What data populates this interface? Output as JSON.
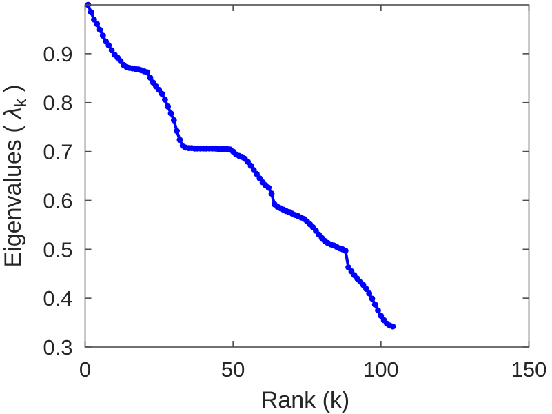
{
  "figure": {
    "background": "#ffffff"
  },
  "chart_data": {
    "type": "scatter",
    "title": "",
    "xlabel": "Rank (k)",
    "ylabel": "Eigenvalues ( λk )",
    "ylabel_parts": {
      "prefix": "Eigenvalues ( ",
      "symbol": "λ",
      "subscript": "k",
      "suffix": " )"
    },
    "xlim": [
      0,
      150
    ],
    "ylim": [
      0.3,
      1.0
    ],
    "xticks": {
      "values": [
        0,
        50,
        100,
        150
      ],
      "labels": [
        "0",
        "50",
        "100",
        "150"
      ]
    },
    "yticks": {
      "values": [
        0.3,
        0.4,
        0.5,
        0.6,
        0.7,
        0.8,
        0.9
      ],
      "labels": [
        "0.3",
        "0.4",
        "0.5",
        "0.6",
        "0.7",
        "0.8",
        "0.9"
      ]
    },
    "grid": false,
    "box": true,
    "tick_direction": "in",
    "legend_position": "none",
    "marker": "filled-circle",
    "axis_color": "#4d4d4d",
    "text_color": "#262626",
    "series": [
      {
        "name": "eigenvalues",
        "color": "#0000ff",
        "x_start_rank": 1,
        "values": [
          1.0,
          0.985,
          0.97,
          0.961,
          0.949,
          0.937,
          0.925,
          0.917,
          0.907,
          0.898,
          0.892,
          0.885,
          0.877,
          0.873,
          0.871,
          0.87,
          0.869,
          0.868,
          0.866,
          0.864,
          0.862,
          0.851,
          0.841,
          0.833,
          0.826,
          0.818,
          0.806,
          0.792,
          0.778,
          0.764,
          0.742,
          0.724,
          0.712,
          0.708,
          0.707,
          0.707,
          0.706,
          0.706,
          0.706,
          0.706,
          0.706,
          0.706,
          0.706,
          0.706,
          0.705,
          0.705,
          0.705,
          0.705,
          0.704,
          0.7,
          0.694,
          0.691,
          0.689,
          0.685,
          0.679,
          0.671,
          0.662,
          0.654,
          0.645,
          0.637,
          0.631,
          0.626,
          0.614,
          0.592,
          0.587,
          0.584,
          0.581,
          0.578,
          0.576,
          0.573,
          0.57,
          0.568,
          0.565,
          0.562,
          0.557,
          0.551,
          0.545,
          0.538,
          0.53,
          0.523,
          0.517,
          0.513,
          0.51,
          0.508,
          0.505,
          0.502,
          0.5,
          0.497,
          0.463,
          0.455,
          0.447,
          0.44,
          0.434,
          0.427,
          0.419,
          0.41,
          0.399,
          0.387,
          0.375,
          0.364,
          0.355,
          0.348,
          0.344,
          0.342
        ]
      }
    ]
  }
}
